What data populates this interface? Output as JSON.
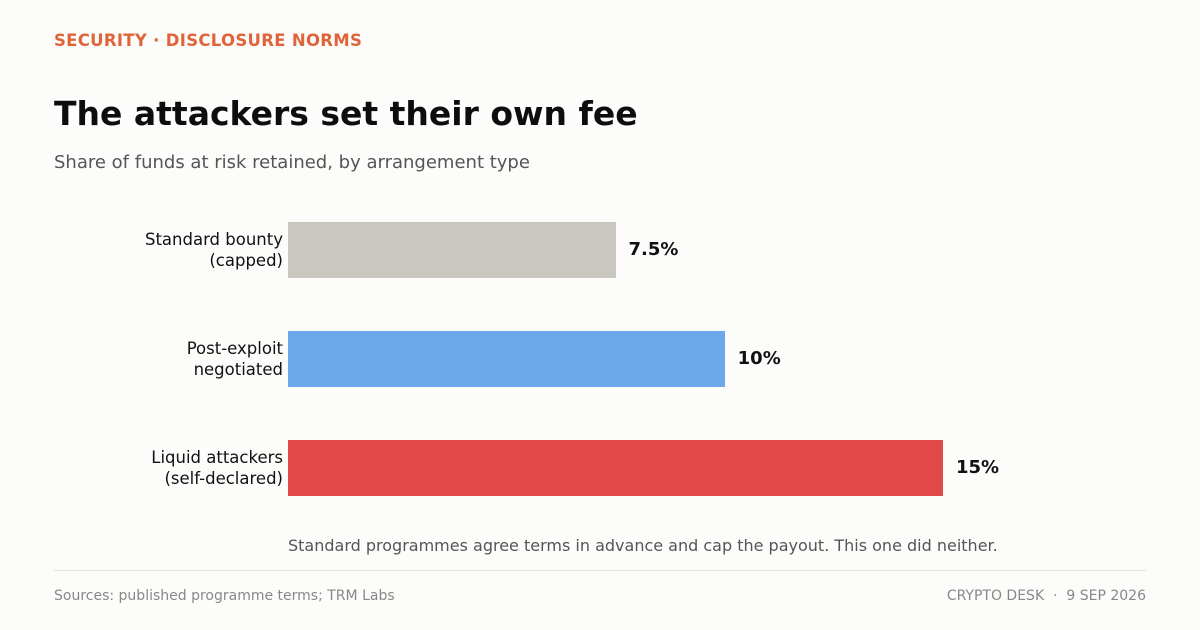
{
  "chart_data": {
    "type": "bar",
    "orientation": "horizontal",
    "kicker": "SECURITY · DISCLOSURE NORMS",
    "title": "The attackers set their own fee",
    "subtitle": "Share of funds at risk retained, by arrangement type",
    "categories": [
      "Standard bounty\n(capped)",
      "Post-exploit\nnegotiated",
      "Liquid attackers\n(self-declared)"
    ],
    "values": [
      7.5,
      10,
      15
    ],
    "value_labels": [
      "7.5%",
      "10%",
      "15%"
    ],
    "colors": [
      "#cac7c1",
      "#6ca8eb",
      "#e24a4a"
    ],
    "note": "Standard programmes agree terms in advance and cap the payout. This one did neither.",
    "source": "Sources: published programme terms; TRM Labs",
    "credit": "CRYPTO DESK  ·  9 SEP 2026"
  }
}
